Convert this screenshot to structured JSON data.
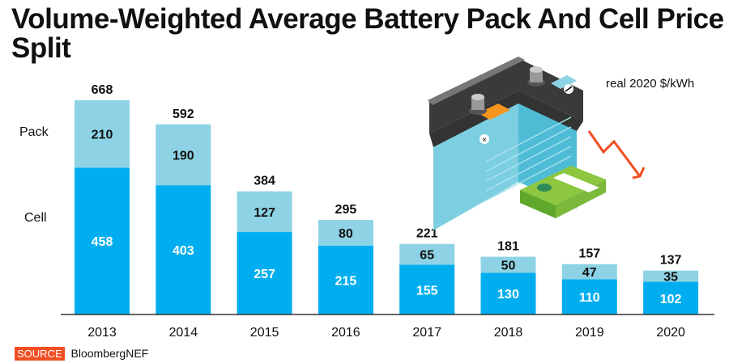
{
  "title": "Volume-Weighted Average Battery Pack And Cell Price Split",
  "unit_label": "real 2020 $/kWh",
  "source": {
    "badge": "SOURCE",
    "text": "BloombergNEF"
  },
  "legend": {
    "pack": "Pack",
    "cell": "Cell"
  },
  "colors": {
    "cell": "#00aeef",
    "pack": "#8dd3e5",
    "source_badge": "#f04e23",
    "arrow": "#f04e23"
  },
  "icons": [
    "battery-illustration",
    "money-stack-icon",
    "down-arrow-icon"
  ],
  "chart_data": {
    "type": "bar",
    "stacked": true,
    "categories": [
      "2013",
      "2014",
      "2015",
      "2016",
      "2017",
      "2018",
      "2019",
      "2020"
    ],
    "series": [
      {
        "name": "Cell",
        "values": [
          458,
          403,
          257,
          215,
          155,
          130,
          110,
          102
        ]
      },
      {
        "name": "Pack",
        "values": [
          210,
          190,
          127,
          80,
          65,
          50,
          47,
          35
        ]
      }
    ],
    "totals": [
      668,
      592,
      384,
      295,
      221,
      181,
      157,
      137
    ],
    "ylim": [
      0,
      700
    ],
    "grid": false,
    "legend_placement": "left"
  }
}
